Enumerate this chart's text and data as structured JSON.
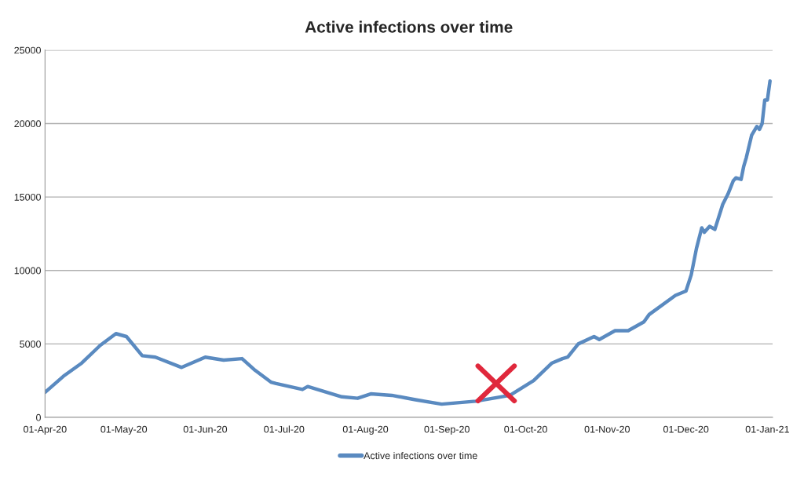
{
  "chart_data": {
    "type": "line",
    "title": "Active infections over time",
    "x": [
      "2020-04-01",
      "2020-04-08",
      "2020-04-15",
      "2020-04-22",
      "2020-04-28",
      "2020-05-02",
      "2020-05-08",
      "2020-05-13",
      "2020-05-23",
      "2020-06-01",
      "2020-06-08",
      "2020-06-15",
      "2020-06-20",
      "2020-06-26",
      "2020-06-28",
      "2020-07-08",
      "2020-07-10",
      "2020-07-23",
      "2020-07-29",
      "2020-08-03",
      "2020-08-11",
      "2020-08-20",
      "2020-08-30",
      "2020-09-12",
      "2020-09-25",
      "2020-10-04",
      "2020-10-11",
      "2020-10-15",
      "2020-10-17",
      "2020-10-21",
      "2020-10-27",
      "2020-10-29",
      "2020-11-04",
      "2020-11-09",
      "2020-11-15",
      "2020-11-17",
      "2020-11-27",
      "2020-12-01",
      "2020-12-03",
      "2020-12-05",
      "2020-12-07",
      "2020-12-08",
      "2020-12-10",
      "2020-12-12",
      "2020-12-15",
      "2020-12-17",
      "2020-12-19",
      "2020-12-20",
      "2020-12-22",
      "2020-12-23",
      "2020-12-24",
      "2020-12-26",
      "2020-12-28",
      "2020-12-29",
      "2020-12-30",
      "2020-12-31",
      "2021-01-01",
      "2021-01-02"
    ],
    "series": [
      {
        "name": "Active infections over time",
        "color": "#5a8ac0",
        "values": [
          1700,
          2800,
          3700,
          4900,
          5700,
          5500,
          4200,
          4100,
          3400,
          4100,
          3900,
          4000,
          3200,
          2400,
          2300,
          1900,
          2100,
          1400,
          1300,
          1600,
          1500,
          1200,
          900,
          1100,
          1500,
          2500,
          3700,
          4000,
          4100,
          5000,
          5500,
          5300,
          5900,
          5900,
          6500,
          7000,
          8300,
          8600,
          9700,
          11500,
          12900,
          12600,
          13000,
          12800,
          14500,
          15200,
          16100,
          16300,
          16200,
          17100,
          17700,
          19200,
          19800,
          19600,
          20000,
          21600,
          21600,
          22900
        ]
      }
    ],
    "xlim": [
      "2020-04-01",
      "2021-01-03"
    ],
    "xticks": [
      {
        "value": "2020-04-01",
        "label": "01-Apr-20"
      },
      {
        "value": "2020-05-01",
        "label": "01-May-20"
      },
      {
        "value": "2020-06-01",
        "label": "01-Jun-20"
      },
      {
        "value": "2020-07-01",
        "label": "01-Jul-20"
      },
      {
        "value": "2020-08-01",
        "label": "01-Aug-20"
      },
      {
        "value": "2020-09-01",
        "label": "01-Sep-20"
      },
      {
        "value": "2020-10-01",
        "label": "01-Oct-20"
      },
      {
        "value": "2020-11-01",
        "label": "01-Nov-20"
      },
      {
        "value": "2020-12-01",
        "label": "01-Dec-20"
      },
      {
        "value": "2021-01-01",
        "label": "01-Jan-21"
      }
    ],
    "ylim": [
      0,
      25000
    ],
    "yticks": [
      0,
      5000,
      10000,
      15000,
      20000,
      25000
    ],
    "grid": "y",
    "legend": "bottom",
    "marker": "none",
    "line_style": "solid"
  }
}
